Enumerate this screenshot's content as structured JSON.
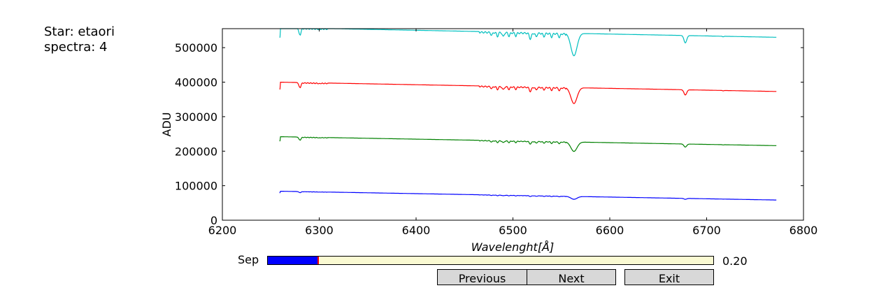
{
  "info": {
    "star_line": "Star: etaori",
    "spectra_line": "spectra: 4"
  },
  "controls": {
    "sep_label": "Sep",
    "sep_value_text": "0.20",
    "sep_fraction": 0.112,
    "previous_label": "Previous",
    "next_label": "Next",
    "exit_label": "Exit"
  },
  "chart_data": {
    "type": "line",
    "xlabel": "Wavelenght[Å]",
    "ylabel": "ADU",
    "xlim": [
      6200,
      6800
    ],
    "ylim": [
      0,
      555000
    ],
    "xticks": [
      6200,
      6300,
      6400,
      6500,
      6600,
      6700,
      6800
    ],
    "yticks": [
      0,
      100000,
      200000,
      300000,
      400000,
      500000
    ],
    "x_range": [
      6259,
      6772
    ],
    "grid": false,
    "series": [
      {
        "color": "#0000ff",
        "start": 84000,
        "end": 58500
      },
      {
        "color": "#008000",
        "start": 242000,
        "end": 216000
      },
      {
        "color": "#ff0000",
        "start": 400000,
        "end": 373000
      },
      {
        "color": "#00bfbf",
        "start": 558000,
        "end": 530000
      }
    ],
    "absorption_lines": [
      {
        "center": 6280,
        "depth": 0.035,
        "width": 1.5
      },
      {
        "center": 6300,
        "depth": 0.004,
        "width": 1.0
      },
      {
        "center": 6478,
        "depth": 0.015,
        "width": 1.2
      },
      {
        "center": 6484,
        "depth": 0.02,
        "width": 1.2
      },
      {
        "center": 6490,
        "depth": 0.022,
        "width": 1.2
      },
      {
        "center": 6496,
        "depth": 0.018,
        "width": 1.2
      },
      {
        "center": 6503,
        "depth": 0.016,
        "width": 1.2
      },
      {
        "center": 6518,
        "depth": 0.03,
        "width": 1.5
      },
      {
        "center": 6524,
        "depth": 0.018,
        "width": 1.2
      },
      {
        "center": 6532,
        "depth": 0.016,
        "width": 1.2
      },
      {
        "center": 6540,
        "depth": 0.018,
        "width": 1.2
      },
      {
        "center": 6548,
        "depth": 0.02,
        "width": 1.2
      },
      {
        "center": 6563,
        "depth": 0.12,
        "width": 4.5
      },
      {
        "center": 6678,
        "depth": 0.04,
        "width": 2.0
      },
      {
        "center": 6717,
        "depth": 0.003,
        "width": 1.0
      }
    ]
  }
}
